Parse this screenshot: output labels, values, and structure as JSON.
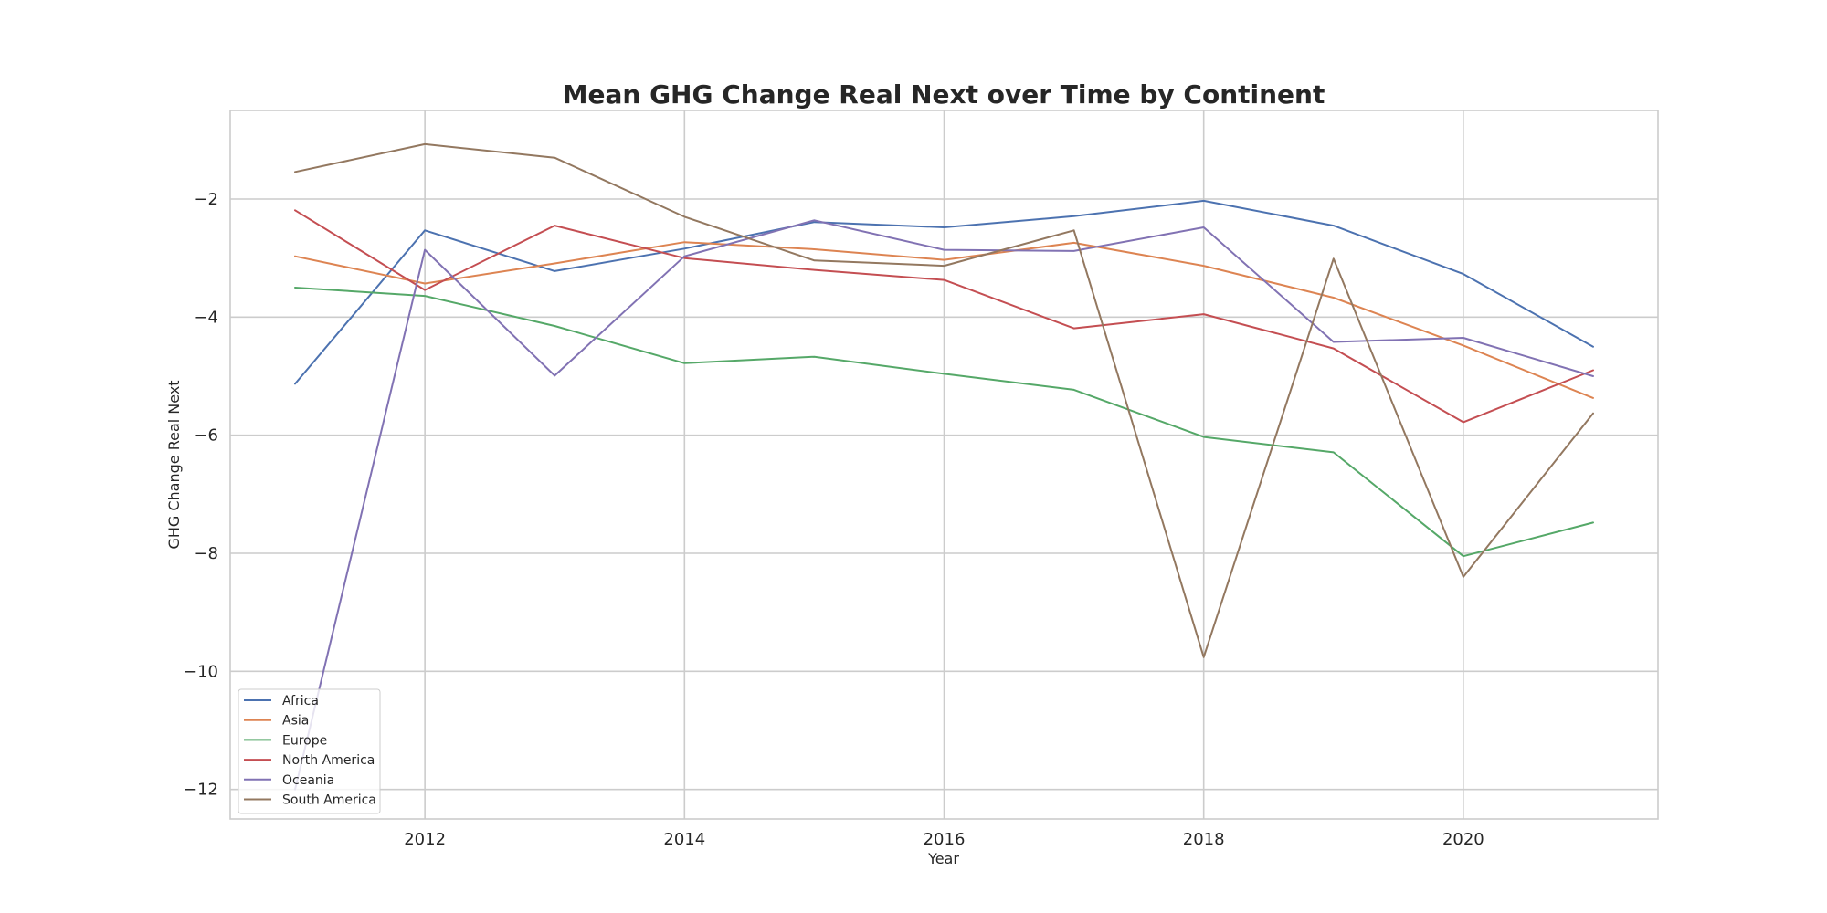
{
  "chart_data": {
    "type": "line",
    "title": "Mean GHG Change Real Next over Time by Continent",
    "xlabel": "Year",
    "ylabel": "GHG Change Real Next",
    "xlim": [
      2010.5,
      2021.5
    ],
    "ylim": [
      -12.5,
      -0.5
    ],
    "xticks": [
      2012,
      2014,
      2016,
      2018,
      2020
    ],
    "yticks": [
      -12,
      -10,
      -8,
      -6,
      -4,
      -2
    ],
    "ytick_labels": [
      "−12",
      "−10",
      "−8",
      "−6",
      "−4",
      "−2"
    ],
    "grid": true,
    "legend_position": "lower-left",
    "x": [
      2011,
      2012,
      2013,
      2014,
      2015,
      2016,
      2017,
      2018,
      2019,
      2020,
      2021
    ],
    "series": [
      {
        "name": "Africa",
        "color": "#4c72b0",
        "values": [
          -5.13,
          -2.53,
          -3.22,
          -2.84,
          -2.39,
          -2.48,
          -2.29,
          -2.03,
          -2.45,
          -3.27,
          -4.5
        ]
      },
      {
        "name": "Asia",
        "color": "#dd8452",
        "values": [
          -2.97,
          -3.43,
          -3.09,
          -2.73,
          -2.85,
          -3.03,
          -2.74,
          -3.13,
          -3.67,
          -4.48,
          -5.37
        ]
      },
      {
        "name": "Europe",
        "color": "#55a868",
        "values": [
          -3.5,
          -3.64,
          -4.15,
          -4.78,
          -4.67,
          -4.96,
          -5.23,
          -6.03,
          -6.29,
          -8.05,
          -7.48
        ]
      },
      {
        "name": "North America",
        "color": "#c44e52",
        "values": [
          -2.19,
          -3.54,
          -2.45,
          -3.0,
          -3.2,
          -3.37,
          -4.19,
          -3.95,
          -4.53,
          -5.78,
          -4.9
        ]
      },
      {
        "name": "Oceania",
        "color": "#8172b3",
        "values": [
          -12.0,
          -2.86,
          -4.99,
          -2.97,
          -2.36,
          -2.86,
          -2.88,
          -2.48,
          -4.42,
          -4.35,
          -5.0
        ]
      },
      {
        "name": "South America",
        "color": "#937860",
        "values": [
          -1.54,
          -1.07,
          -1.3,
          -2.3,
          -3.04,
          -3.13,
          -2.53,
          -9.76,
          -3.01,
          -8.4,
          -5.63
        ]
      }
    ]
  }
}
